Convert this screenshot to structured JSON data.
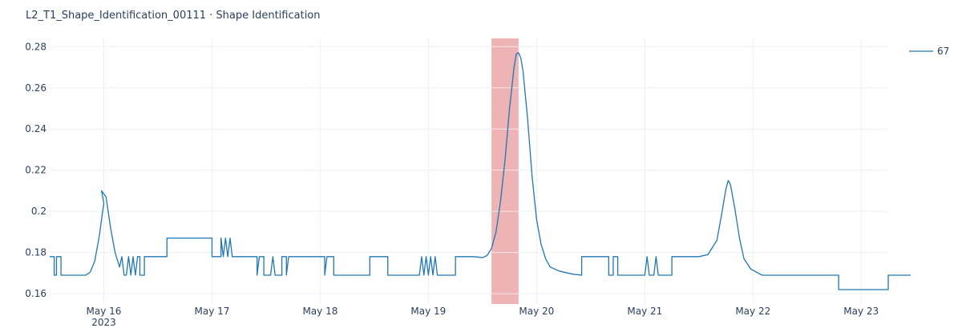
{
  "chart_data": {
    "type": "line",
    "title": "L2_T1_Shape_Identification_00111 · Shape Identification",
    "xlabel": "",
    "ylabel": "",
    "x_range": [
      "2023-05-15 12:00",
      "2023-05-23 06:00"
    ],
    "ylim": [
      0.155,
      0.284
    ],
    "y_ticks": [
      0.16,
      0.18,
      0.2,
      0.22,
      0.24,
      0.26,
      0.28
    ],
    "y_tick_labels": [
      "0.16",
      "0.18",
      "0.2",
      "0.22",
      "0.24",
      "0.26",
      "0.28"
    ],
    "x_ticks": [
      "2023-05-16",
      "2023-05-17",
      "2023-05-18",
      "2023-05-19",
      "2023-05-20",
      "2023-05-21",
      "2023-05-22",
      "2023-05-23"
    ],
    "x_tick_labels": [
      "May 16",
      "May 17",
      "May 18",
      "May 19",
      "May 20",
      "May 21",
      "May 22",
      "May 23"
    ],
    "x_tick_sublabel": "2023",
    "grid": true,
    "legend_position": "top-right",
    "highlight": {
      "x_start": "2023-05-19 14:00",
      "x_end": "2023-05-19 20:00",
      "color": "#e8999b"
    },
    "series": [
      {
        "name": "67",
        "color": "#1f77b4",
        "points": [
          [
            "2023-05-15 12:00",
            0.178
          ],
          [
            "2023-05-15 13:00",
            0.178
          ],
          [
            "2023-05-15 13:00",
            0.169
          ],
          [
            "2023-05-15 13:30",
            0.169
          ],
          [
            "2023-05-15 13:30",
            0.178
          ],
          [
            "2023-05-15 14:30",
            0.178
          ],
          [
            "2023-05-15 14:30",
            0.169
          ],
          [
            "2023-05-15 20:00",
            0.169
          ],
          [
            "2023-05-15 21:00",
            0.1705
          ],
          [
            "2023-05-15 22:00",
            0.176
          ],
          [
            "2023-05-15 23:00",
            0.188
          ],
          [
            "2023-05-16 00:00",
            0.204
          ],
          [
            "2023-05-15 23:30",
            0.21
          ],
          [
            "2023-05-16 00:30",
            0.207
          ],
          [
            "2023-05-16 01:30",
            0.192
          ],
          [
            "2023-05-16 02:30",
            0.18
          ],
          [
            "2023-05-16 03:30",
            0.173
          ],
          [
            "2023-05-16 04:00",
            0.178
          ],
          [
            "2023-05-16 04:30",
            0.169
          ],
          [
            "2023-05-16 05:00",
            0.169
          ],
          [
            "2023-05-16 05:30",
            0.178
          ],
          [
            "2023-05-16 06:00",
            0.169
          ],
          [
            "2023-05-16 06:30",
            0.178
          ],
          [
            "2023-05-16 07:00",
            0.169
          ],
          [
            "2023-05-16 07:30",
            0.178
          ],
          [
            "2023-05-16 08:00",
            0.178
          ],
          [
            "2023-05-16 08:00",
            0.169
          ],
          [
            "2023-05-16 09:00",
            0.169
          ],
          [
            "2023-05-16 09:00",
            0.178
          ],
          [
            "2023-05-16 14:00",
            0.178
          ],
          [
            "2023-05-16 14:00",
            0.187
          ],
          [
            "2023-05-17 00:00",
            0.187
          ],
          [
            "2023-05-17 00:00",
            0.178
          ],
          [
            "2023-05-17 02:00",
            0.178
          ],
          [
            "2023-05-17 02:00",
            0.187
          ],
          [
            "2023-05-17 02:30",
            0.178
          ],
          [
            "2023-05-17 03:00",
            0.187
          ],
          [
            "2023-05-17 03:30",
            0.178
          ],
          [
            "2023-05-17 04:00",
            0.187
          ],
          [
            "2023-05-17 04:30",
            0.178
          ],
          [
            "2023-05-17 10:00",
            0.178
          ],
          [
            "2023-05-17 10:00",
            0.169
          ],
          [
            "2023-05-17 10:30",
            0.178
          ],
          [
            "2023-05-17 11:30",
            0.178
          ],
          [
            "2023-05-17 11:30",
            0.169
          ],
          [
            "2023-05-17 13:00",
            0.169
          ],
          [
            "2023-05-17 13:30",
            0.178
          ],
          [
            "2023-05-17 14:00",
            0.169
          ],
          [
            "2023-05-17 15:30",
            0.169
          ],
          [
            "2023-05-17 15:30",
            0.178
          ],
          [
            "2023-05-17 16:30",
            0.178
          ],
          [
            "2023-05-17 16:30",
            0.169
          ],
          [
            "2023-05-17 17:00",
            0.178
          ],
          [
            "2023-05-18 01:00",
            0.178
          ],
          [
            "2023-05-18 01:00",
            0.169
          ],
          [
            "2023-05-18 01:30",
            0.178
          ],
          [
            "2023-05-18 03:00",
            0.178
          ],
          [
            "2023-05-18 03:00",
            0.169
          ],
          [
            "2023-05-18 11:00",
            0.169
          ],
          [
            "2023-05-18 11:00",
            0.178
          ],
          [
            "2023-05-18 15:00",
            0.178
          ],
          [
            "2023-05-18 15:00",
            0.169
          ],
          [
            "2023-05-18 22:00",
            0.169
          ],
          [
            "2023-05-18 22:30",
            0.178
          ],
          [
            "2023-05-18 23:00",
            0.169
          ],
          [
            "2023-05-18 23:30",
            0.178
          ],
          [
            "2023-05-19 00:00",
            0.169
          ],
          [
            "2023-05-19 00:30",
            0.178
          ],
          [
            "2023-05-19 01:00",
            0.169
          ],
          [
            "2023-05-19 01:30",
            0.178
          ],
          [
            "2023-05-19 02:00",
            0.169
          ],
          [
            "2023-05-19 06:00",
            0.169
          ],
          [
            "2023-05-19 06:00",
            0.178
          ],
          [
            "2023-05-19 10:00",
            0.178
          ],
          [
            "2023-05-19 11:00",
            0.1778
          ],
          [
            "2023-05-19 12:00",
            0.1775
          ],
          [
            "2023-05-19 13:00",
            0.1785
          ],
          [
            "2023-05-19 14:00",
            0.182
          ],
          [
            "2023-05-19 15:00",
            0.19
          ],
          [
            "2023-05-19 16:00",
            0.205
          ],
          [
            "2023-05-19 17:00",
            0.225
          ],
          [
            "2023-05-19 18:00",
            0.25
          ],
          [
            "2023-05-19 19:00",
            0.27
          ],
          [
            "2023-05-19 19:30",
            0.2765
          ],
          [
            "2023-05-19 20:00",
            0.277
          ],
          [
            "2023-05-19 20:30",
            0.2745
          ],
          [
            "2023-05-19 21:00",
            0.268
          ],
          [
            "2023-05-19 22:00",
            0.245
          ],
          [
            "2023-05-19 23:00",
            0.217
          ],
          [
            "2023-05-20 00:00",
            0.196
          ],
          [
            "2023-05-20 01:00",
            0.184
          ],
          [
            "2023-05-20 02:00",
            0.177
          ],
          [
            "2023-05-20 03:00",
            0.173
          ],
          [
            "2023-05-20 05:00",
            0.171
          ],
          [
            "2023-05-20 08:00",
            0.1695
          ],
          [
            "2023-05-20 10:00",
            0.169
          ],
          [
            "2023-05-20 10:00",
            0.178
          ],
          [
            "2023-05-20 16:00",
            0.178
          ],
          [
            "2023-05-20 16:00",
            0.169
          ],
          [
            "2023-05-20 17:00",
            0.169
          ],
          [
            "2023-05-20 17:00",
            0.178
          ],
          [
            "2023-05-20 18:00",
            0.178
          ],
          [
            "2023-05-20 18:00",
            0.169
          ],
          [
            "2023-05-21 00:00",
            0.169
          ],
          [
            "2023-05-21 00:30",
            0.178
          ],
          [
            "2023-05-21 01:00",
            0.169
          ],
          [
            "2023-05-21 02:00",
            0.169
          ],
          [
            "2023-05-21 02:30",
            0.178
          ],
          [
            "2023-05-21 03:00",
            0.169
          ],
          [
            "2023-05-21 06:00",
            0.169
          ],
          [
            "2023-05-21 06:00",
            0.178
          ],
          [
            "2023-05-21 12:00",
            0.178
          ],
          [
            "2023-05-21 14:00",
            0.179
          ],
          [
            "2023-05-21 16:00",
            0.186
          ],
          [
            "2023-05-21 17:00",
            0.198
          ],
          [
            "2023-05-21 18:00",
            0.211
          ],
          [
            "2023-05-21 18:30",
            0.215
          ],
          [
            "2023-05-21 19:00",
            0.213
          ],
          [
            "2023-05-21 20:00",
            0.201
          ],
          [
            "2023-05-21 21:00",
            0.187
          ],
          [
            "2023-05-21 22:00",
            0.177
          ],
          [
            "2023-05-21 23:30",
            0.172
          ],
          [
            "2023-05-22 02:00",
            0.169
          ],
          [
            "2023-05-22 19:00",
            0.169
          ],
          [
            "2023-05-22 19:00",
            0.162
          ],
          [
            "2023-05-23 06:00",
            0.162
          ],
          [
            "2023-05-23 06:00",
            0.169
          ],
          [
            "2023-05-23 11:00",
            0.169
          ]
        ]
      }
    ]
  }
}
